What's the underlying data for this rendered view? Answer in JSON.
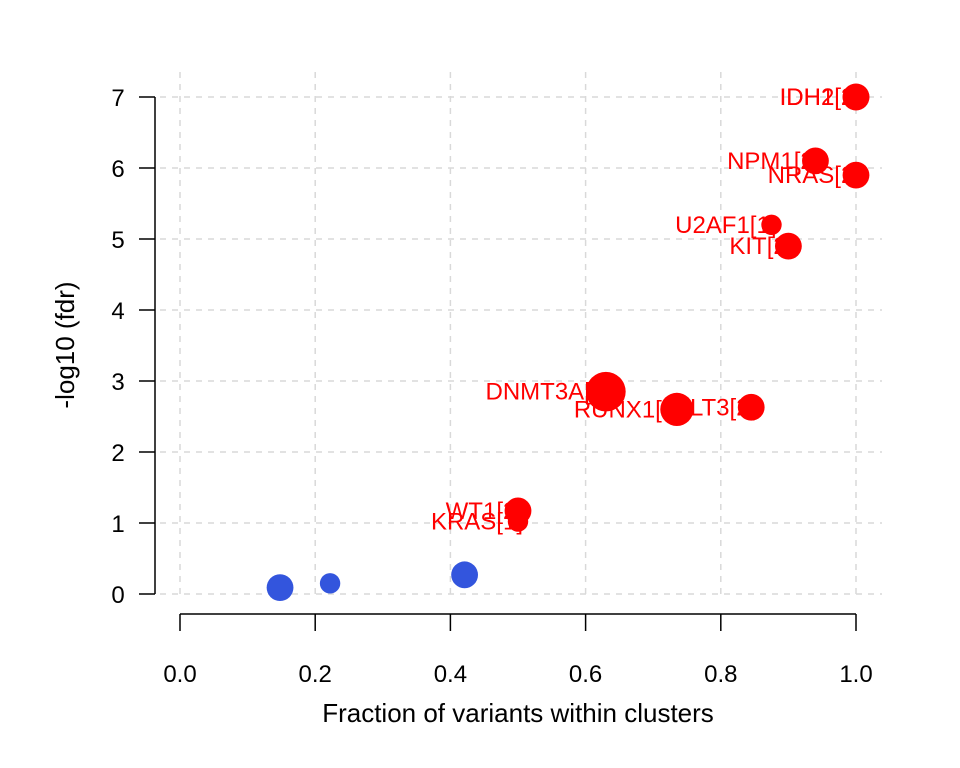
{
  "colors": {
    "significant": "#ff0000",
    "non_significant": "#3355dd",
    "grid": "#d9d9d9",
    "axis": "#000000"
  },
  "chart_data": {
    "type": "scatter",
    "title": "",
    "xlabel": "Fraction of variants within clusters",
    "ylabel": "-log10 (fdr)",
    "xlim": [
      0,
      1
    ],
    "ylim": [
      0,
      7
    ],
    "xticks": [
      0.0,
      0.2,
      0.4,
      0.6,
      0.8,
      1.0
    ],
    "xtick_labels": [
      "0.0",
      "0.2",
      "0.4",
      "0.6",
      "0.8",
      "1.0"
    ],
    "yticks": [
      0,
      1,
      2,
      3,
      4,
      5,
      6,
      7
    ],
    "ytick_labels": [
      "0",
      "1",
      "2",
      "3",
      "4",
      "5",
      "6",
      "7"
    ],
    "grid": true,
    "points": [
      {
        "label": "IDH1[2]",
        "x": 1.0,
        "y": 7.0,
        "size": 2,
        "significant": true
      },
      {
        "label": "IDH2[2]",
        "x": 1.0,
        "y": 7.0,
        "size": 2,
        "significant": true
      },
      {
        "label": "NPM1[2]",
        "x": 0.94,
        "y": 6.1,
        "size": 2,
        "significant": true
      },
      {
        "label": "NRAS[2]",
        "x": 1.0,
        "y": 5.9,
        "size": 2,
        "significant": true
      },
      {
        "label": "U2AF1[1]",
        "x": 0.875,
        "y": 5.2,
        "size": 1,
        "significant": true
      },
      {
        "label": "KIT[2]",
        "x": 0.9,
        "y": 4.9,
        "size": 2,
        "significant": true
      },
      {
        "label": "DNMT3A[4]",
        "x": 0.63,
        "y": 2.85,
        "size": 4,
        "significant": true
      },
      {
        "label": "RUNX1[3]",
        "x": 0.735,
        "y": 2.6,
        "size": 3,
        "significant": true
      },
      {
        "label": "FLT3[2]",
        "x": 0.845,
        "y": 2.63,
        "size": 2,
        "significant": true
      },
      {
        "label": "WT1[2]",
        "x": 0.5,
        "y": 1.17,
        "size": 2,
        "significant": true
      },
      {
        "label": "KRAS[1]",
        "x": 0.5,
        "y": 1.02,
        "size": 1,
        "significant": true
      },
      {
        "label": "",
        "x": 0.148,
        "y": 0.09,
        "size": 2,
        "significant": false
      },
      {
        "label": "",
        "x": 0.222,
        "y": 0.15,
        "size": 1,
        "significant": false
      },
      {
        "label": "",
        "x": 0.421,
        "y": 0.27,
        "size": 2,
        "significant": false
      }
    ]
  }
}
